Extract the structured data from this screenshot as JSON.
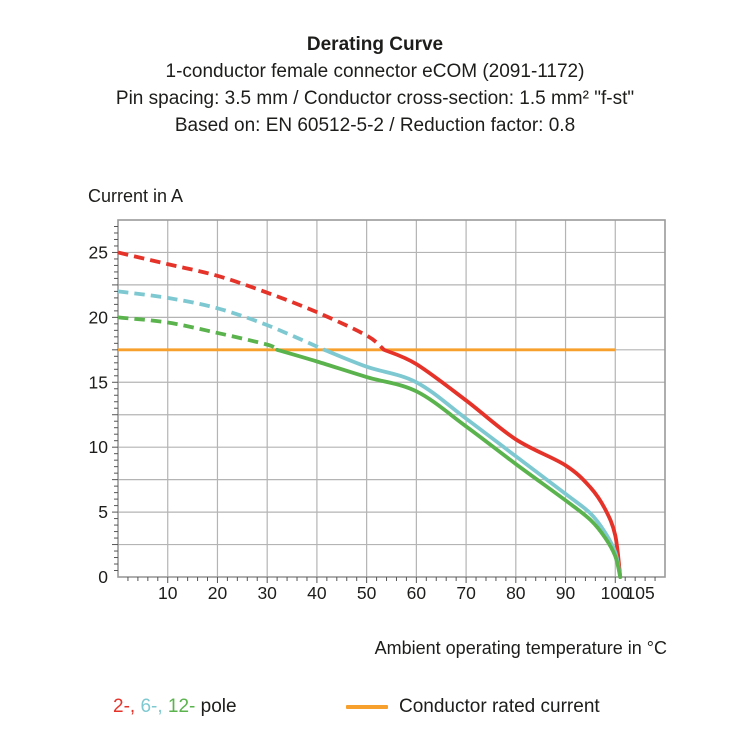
{
  "header": {
    "title": "Derating Curve",
    "subtitle_lines": [
      "1-conductor female connector eCOM (2091-1172)",
      "Pin spacing: 3.5 mm / Conductor cross-section: 1.5 mm² \"f-st\"",
      "Based on: EN 60512-5-2 / Reduction factor: 0.8"
    ]
  },
  "chart_data": {
    "type": "line",
    "title": "Derating Curve",
    "ylabel": "Current in A",
    "xlabel": "Ambient operating temperature in °C",
    "xlim": [
      0,
      110
    ],
    "ylim": [
      0,
      27.5
    ],
    "x_tick_labels": [
      10,
      20,
      30,
      40,
      50,
      60,
      70,
      80,
      90,
      100,
      105
    ],
    "y_tick_labels": [
      0,
      5,
      10,
      15,
      20,
      25
    ],
    "x_gridline_step": 10,
    "x_gridline_max": 100,
    "y_gridline_step": 2.5,
    "y_gridline_max": 25,
    "x_minor_tick_step": 2,
    "y_minor_tick_step": 0.5,
    "grid": true,
    "legend_position": "bottom",
    "reference_line": {
      "y": 17.5,
      "x_start": 0,
      "x_end": 100,
      "color": "#F7A02E",
      "label": "Conductor rated current"
    },
    "series": [
      {
        "name": "2-pole",
        "color": "#E5332A",
        "dashed_until_x": 53.5,
        "points": [
          [
            0,
            25
          ],
          [
            10,
            24.1
          ],
          [
            20,
            23.2
          ],
          [
            30,
            21.9
          ],
          [
            40,
            20.4
          ],
          [
            50,
            18.6
          ],
          [
            53.5,
            17.5
          ],
          [
            60,
            16.4
          ],
          [
            70,
            13.6
          ],
          [
            80,
            10.6
          ],
          [
            90,
            8.6
          ],
          [
            95,
            6.9
          ],
          [
            98,
            5.2
          ],
          [
            100,
            3.2
          ],
          [
            101,
            0
          ]
        ]
      },
      {
        "name": "6-pole",
        "color": "#7EC9D1",
        "dashed_until_x": 41.5,
        "points": [
          [
            0,
            22
          ],
          [
            10,
            21.5
          ],
          [
            20,
            20.7
          ],
          [
            30,
            19.4
          ],
          [
            41.5,
            17.5
          ],
          [
            50,
            16.2
          ],
          [
            60,
            15.0
          ],
          [
            70,
            12.2
          ],
          [
            80,
            9.3
          ],
          [
            90,
            6.4
          ],
          [
            95,
            4.9
          ],
          [
            98,
            3.4
          ],
          [
            100,
            1.9
          ],
          [
            101,
            0
          ]
        ]
      },
      {
        "name": "12-pole",
        "color": "#5AB34D",
        "dashed_until_x": 32,
        "points": [
          [
            0,
            20
          ],
          [
            10,
            19.6
          ],
          [
            20,
            18.8
          ],
          [
            30,
            17.9
          ],
          [
            32,
            17.5
          ],
          [
            40,
            16.6
          ],
          [
            50,
            15.4
          ],
          [
            60,
            14.3
          ],
          [
            70,
            11.6
          ],
          [
            80,
            8.7
          ],
          [
            90,
            5.9
          ],
          [
            95,
            4.4
          ],
          [
            98,
            3.0
          ],
          [
            100,
            1.6
          ],
          [
            101,
            0
          ]
        ]
      }
    ]
  },
  "legend": {
    "poles": [
      {
        "label": "2-,",
        "color": "#E5332A"
      },
      {
        "label": "6-,",
        "color": "#7EC9D1"
      },
      {
        "label": "12-",
        "color": "#5AB34D"
      }
    ],
    "poles_suffix": "pole",
    "rated_current_label": "Conductor rated current",
    "rated_current_color": "#F7A02E"
  },
  "colors": {
    "text": "#1D1D1B",
    "grid": "#B4B4B4",
    "frame": "#9A9A9A"
  }
}
